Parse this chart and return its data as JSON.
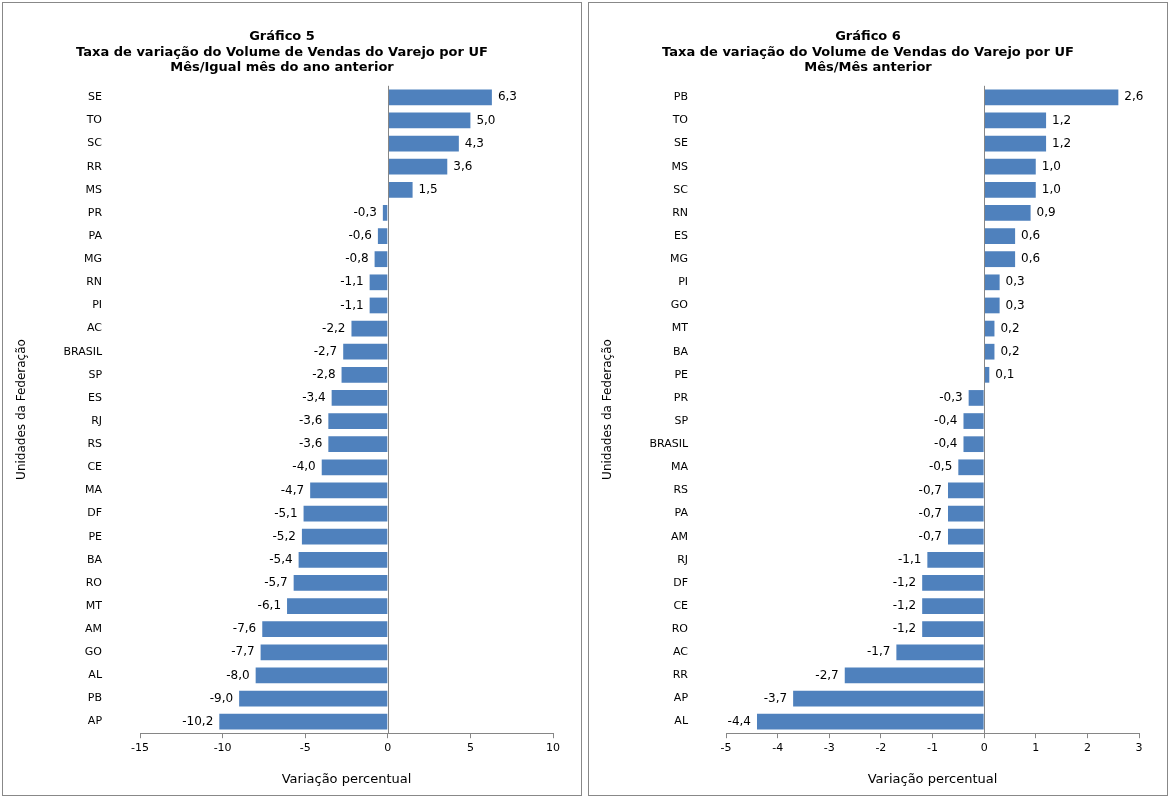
{
  "chart_data": [
    {
      "type": "bar",
      "orientation": "horizontal",
      "title": "Gráfico 5\nTaxa de variação do Volume de Vendas do Varejo por UF\nMês/Igual mês do ano anterior",
      "xlabel": "Variação percentual",
      "ylabel": "Unidades da Federação",
      "categories": [
        "SE",
        "TO",
        "SC",
        "RR",
        "MS",
        "PR",
        "PA",
        "MG",
        "RN",
        "PI",
        "AC",
        "BRASIL",
        "SP",
        "ES",
        "RJ",
        "RS",
        "CE",
        "MA",
        "DF",
        "PE",
        "BA",
        "RO",
        "MT",
        "AM",
        "GO",
        "AL",
        "PB",
        "AP"
      ],
      "values": [
        6.3,
        5.0,
        4.3,
        3.6,
        1.5,
        -0.3,
        -0.6,
        -0.8,
        -1.1,
        -1.1,
        -2.2,
        -2.7,
        -2.8,
        -3.4,
        -3.6,
        -3.6,
        -4.0,
        -4.7,
        -5.1,
        -5.2,
        -5.4,
        -5.7,
        -6.1,
        -7.6,
        -7.7,
        -8.0,
        -9.0,
        -10.2
      ],
      "value_labels": [
        "6,3",
        "5,0",
        "4,3",
        "3,6",
        "1,5",
        "-0,3",
        "-0,6",
        "-0,8",
        "-1,1",
        "-1,1",
        "-2,2",
        "-2,7",
        "-2,8",
        "-3,4",
        "-3,6",
        "-3,6",
        "-4,0",
        "-4,7",
        "-5,1",
        "-5,2",
        "-5,4",
        "-5,7",
        "-6,1",
        "-7,6",
        "-7,7",
        "-8,0",
        "-9,0",
        "-10,2"
      ],
      "color": "#4f81bd",
      "xlim": [
        -15,
        10
      ],
      "xticks": [
        -15,
        -10,
        -5,
        0,
        5,
        10
      ],
      "legend": false
    },
    {
      "type": "bar",
      "orientation": "horizontal",
      "title": "Gráfico 6\nTaxa de variação do Volume de Vendas do Varejo por UF\nMês/Mês anterior",
      "xlabel": "Variação percentual",
      "ylabel": "Unidades da Federação",
      "categories": [
        "PB",
        "TO",
        "SE",
        "MS",
        "SC",
        "RN",
        "ES",
        "MG",
        "PI",
        "GO",
        "MT",
        "BA",
        "PE",
        "PR",
        "SP",
        "BRASIL",
        "MA",
        "RS",
        "PA",
        "AM",
        "RJ",
        "DF",
        "CE",
        "RO",
        "AC",
        "RR",
        "AP",
        "AL"
      ],
      "values": [
        2.6,
        1.2,
        1.2,
        1.0,
        1.0,
        0.9,
        0.6,
        0.6,
        0.3,
        0.3,
        0.2,
        0.2,
        0.1,
        -0.3,
        -0.4,
        -0.4,
        -0.5,
        -0.7,
        -0.7,
        -0.7,
        -1.1,
        -1.2,
        -1.2,
        -1.2,
        -1.7,
        -2.7,
        -3.7,
        -4.4
      ],
      "value_labels": [
        "2,6",
        "1,2",
        "1,2",
        "1,0",
        "1,0",
        "0,9",
        "0,6",
        "0,6",
        "0,3",
        "0,3",
        "0,2",
        "0,2",
        "0,1",
        "-0,3",
        "-0,4",
        "-0,4",
        "-0,5",
        "-0,7",
        "-0,7",
        "-0,7",
        "-1,1",
        "-1,2",
        "-1,2",
        "-1,2",
        "-1,7",
        "-2,7",
        "-3,7",
        "-4,4"
      ],
      "color": "#4f81bd",
      "xlim": [
        -5,
        3
      ],
      "xticks": [
        -5,
        -4,
        -3,
        -2,
        -1,
        0,
        1,
        2,
        3
      ],
      "legend": false
    }
  ]
}
